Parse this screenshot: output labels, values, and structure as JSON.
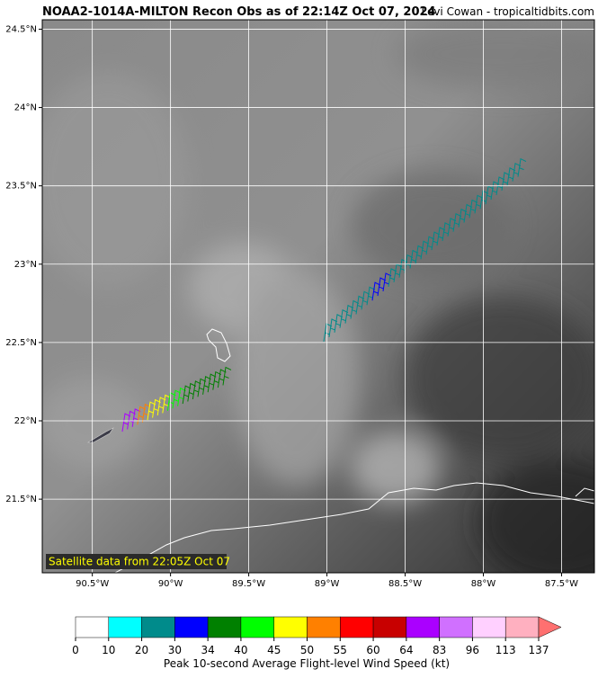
{
  "header": {
    "title": "NOAA2-1014A-MILTON Recon Obs as of 22:14Z Oct 07, 2024",
    "credit": "Levi Cowan - tropicaltidbits.com"
  },
  "map": {
    "lat_range": [
      21.03,
      24.56
    ],
    "lon_range": [
      -90.82,
      -87.29
    ],
    "lat_ticks": [
      {
        "value": 24.5,
        "label": "24.5°N"
      },
      {
        "value": 24,
        "label": "24°N"
      },
      {
        "value": 23.5,
        "label": "23.5°N"
      },
      {
        "value": 23,
        "label": "23°N"
      },
      {
        "value": 22.5,
        "label": "22.5°N"
      },
      {
        "value": 22,
        "label": "22°N"
      },
      {
        "value": 21.5,
        "label": "21.5°N"
      }
    ],
    "lon_ticks": [
      {
        "value": -90.5,
        "label": "90.5°W"
      },
      {
        "value": -90,
        "label": "90°W"
      },
      {
        "value": -89.5,
        "label": "89.5°W"
      },
      {
        "value": -89,
        "label": "89°W"
      },
      {
        "value": -88.5,
        "label": "88.5°W"
      },
      {
        "value": -88,
        "label": "88°W"
      },
      {
        "value": -87.5,
        "label": "87.5°W"
      }
    ],
    "annotation": "Satellite data from 22:05Z Oct 07"
  },
  "colorbar": {
    "label": "Peak 10-second Average Flight-level Wind Speed (kt)",
    "ticks": [
      0,
      10,
      20,
      30,
      34,
      40,
      45,
      50,
      55,
      60,
      64,
      83,
      96,
      113,
      137
    ],
    "colors": [
      "#ffffff",
      "#00ffff",
      "#008b8b",
      "#0000ff",
      "#008000",
      "#00ff00",
      "#ffff00",
      "#ff8000",
      "#ff0000",
      "#c80000",
      "#aa00ff",
      "#d070ff",
      "#ffd0ff",
      "#ffb0c0",
      "#ff7070"
    ]
  }
}
